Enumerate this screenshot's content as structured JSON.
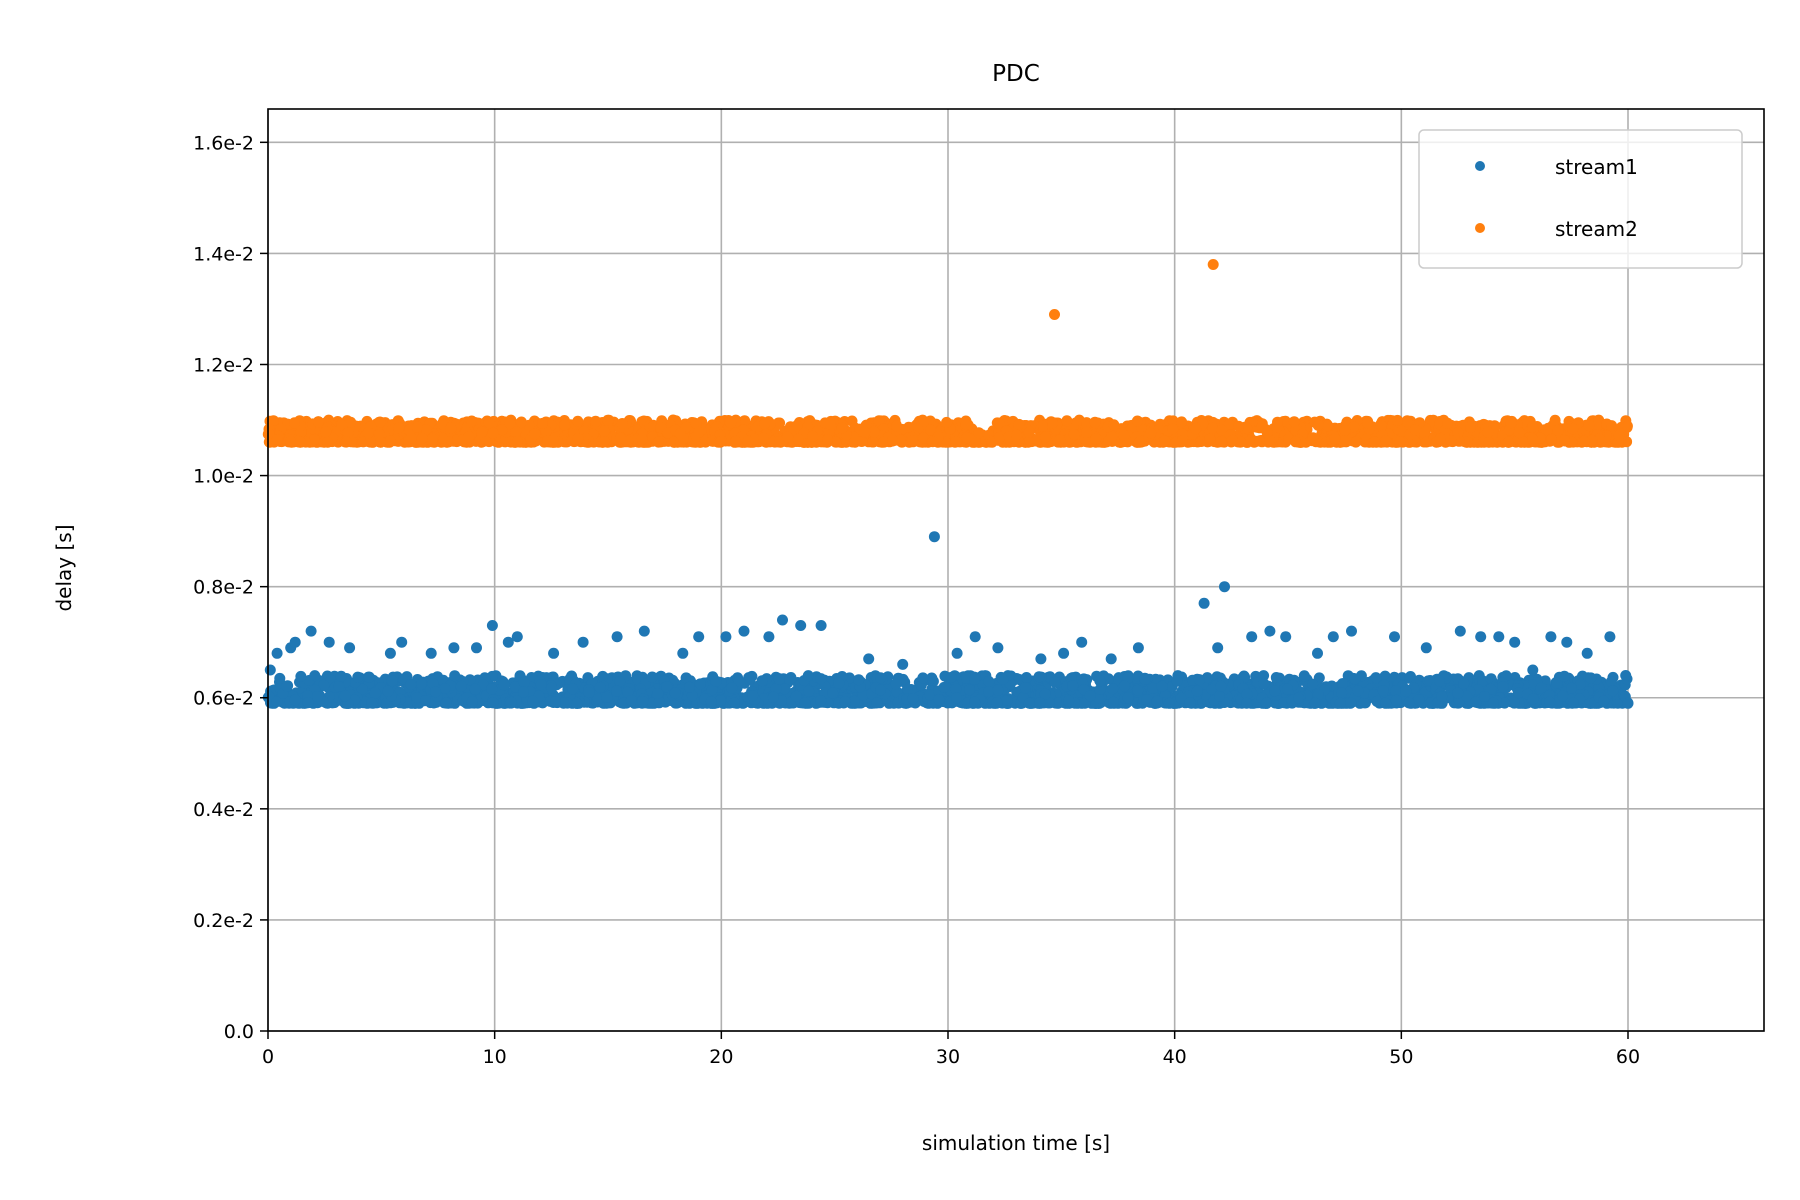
{
  "chart_data": {
    "type": "scatter",
    "title": "PDC",
    "xlabel": "simulation time [s]",
    "ylabel": "delay [s]",
    "xlim": [
      0,
      66
    ],
    "ylim": [
      0,
      0.0166
    ],
    "x_ticks": [
      0,
      10,
      20,
      30,
      40,
      50,
      60
    ],
    "x_tick_labels": [
      "0",
      "10",
      "20",
      "30",
      "40",
      "50",
      "60"
    ],
    "y_ticks": [
      0,
      0.002,
      0.004,
      0.006,
      0.008,
      0.01,
      0.012,
      0.014,
      0.016
    ],
    "y_tick_labels": [
      "0.0",
      "0.2e-2",
      "0.4e-2",
      "0.6e-2",
      "0.8e-2",
      "1.0e-2",
      "1.2e-2",
      "1.4e-2",
      "1.6e-2"
    ],
    "grid": true,
    "legend_position": "top-right",
    "series": [
      {
        "name": "stream1",
        "color": "#1f77b4",
        "x": [
          0.1,
          0.4,
          1.0,
          1.2,
          1.9,
          2.7,
          3.6,
          5.4,
          5.9,
          7.2,
          8.2,
          9.2,
          9.9,
          10.6,
          11.0,
          12.6,
          13.9,
          15.4,
          16.6,
          18.3,
          19.0,
          20.2,
          21.0,
          22.1,
          22.7,
          23.5,
          24.4,
          26.5,
          28.0,
          29.4,
          30.4,
          31.2,
          32.2,
          34.1,
          35.1,
          35.9,
          37.2,
          38.4,
          41.3,
          41.9,
          42.2,
          43.4,
          44.2,
          44.9,
          46.3,
          47.0,
          47.8,
          49.7,
          51.1,
          52.6,
          53.5,
          54.3,
          55.0,
          55.8,
          56.6,
          57.3,
          58.2,
          59.2,
          59.9,
          60.0
        ],
        "y": [
          0.0065,
          0.0068,
          0.0069,
          0.007,
          0.0072,
          0.007,
          0.0069,
          0.0068,
          0.007,
          0.0068,
          0.0069,
          0.0069,
          0.0073,
          0.007,
          0.0071,
          0.0068,
          0.007,
          0.0071,
          0.0072,
          0.0068,
          0.0071,
          0.0071,
          0.0072,
          0.0071,
          0.0074,
          0.0073,
          0.0073,
          0.0067,
          0.0066,
          0.0089,
          0.0068,
          0.0071,
          0.0069,
          0.0067,
          0.0068,
          0.007,
          0.0067,
          0.0069,
          0.0077,
          0.0069,
          0.008,
          0.0071,
          0.0072,
          0.0071,
          0.0068,
          0.0071,
          0.0072,
          0.0071,
          0.0069,
          0.0072,
          0.0071,
          0.0071,
          0.007,
          0.0065,
          0.0071,
          0.007,
          0.0068,
          0.0071,
          0.0064,
          0.0059
        ],
        "band": {
          "x_range": [
            0,
            60
          ],
          "y_range": [
            0.0059,
            0.0064
          ],
          "count": 2600
        }
      },
      {
        "name": "stream2",
        "color": "#ff7f0e",
        "x": [
          34.7,
          41.7
        ],
        "y": [
          0.0129,
          0.0138
        ],
        "band": {
          "x_range": [
            0,
            60
          ],
          "y_range": [
            0.0106,
            0.011
          ],
          "count": 2600
        }
      }
    ]
  }
}
